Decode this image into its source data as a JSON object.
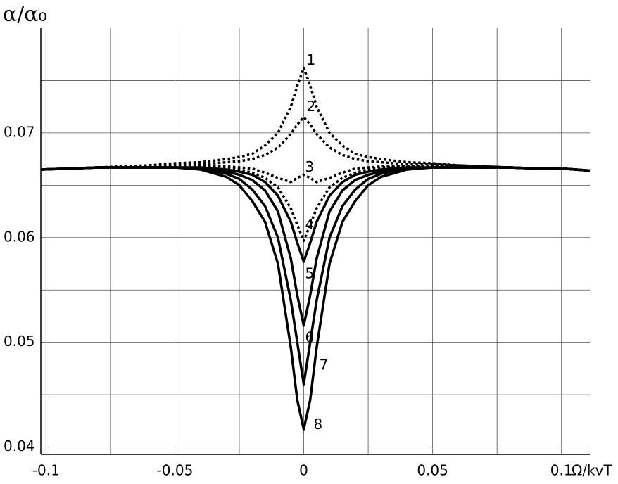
{
  "chart_data": {
    "type": "line",
    "y_label": "α/α₀",
    "x_label": "Ω/kvT",
    "x": [
      -0.102,
      -0.09,
      -0.08,
      -0.07,
      -0.06,
      -0.05,
      -0.04,
      -0.03,
      -0.025,
      -0.02,
      -0.015,
      -0.01,
      -0.005,
      -0.0025,
      0,
      0.0025,
      0.005,
      0.01,
      0.015,
      0.02,
      0.025,
      0.03,
      0.04,
      0.05,
      0.06,
      0.07,
      0.08,
      0.09,
      0.1,
      0.111
    ],
    "series": [
      {
        "name": "1",
        "color": "#000000",
        "dash": "dotted",
        "values": [
          0.0665,
          0.0666,
          0.0667,
          0.0668,
          0.0669,
          0.0671,
          0.0672,
          0.0675,
          0.0677,
          0.068,
          0.0688,
          0.07,
          0.0725,
          0.0745,
          0.0762,
          0.0745,
          0.0725,
          0.07,
          0.0688,
          0.068,
          0.0677,
          0.0675,
          0.0672,
          0.0671,
          0.0669,
          0.0668,
          0.0667,
          0.0666,
          0.0666,
          0.0664
        ]
      },
      {
        "name": "2",
        "color": "#000000",
        "dash": "dotted",
        "values": [
          0.0665,
          0.0666,
          0.0667,
          0.0668,
          0.0669,
          0.067,
          0.067,
          0.0672,
          0.0673,
          0.0675,
          0.0679,
          0.0686,
          0.0699,
          0.0708,
          0.0715,
          0.0708,
          0.0699,
          0.0686,
          0.0679,
          0.0675,
          0.0673,
          0.0672,
          0.067,
          0.067,
          0.0669,
          0.0668,
          0.0667,
          0.0666,
          0.0666,
          0.0664
        ]
      },
      {
        "name": "3",
        "color": "#000000",
        "dash": "dotted",
        "values": [
          0.0665,
          0.0666,
          0.0667,
          0.0667,
          0.0668,
          0.0668,
          0.0668,
          0.0668,
          0.0667,
          0.0666,
          0.0662,
          0.0657,
          0.0653,
          0.0657,
          0.066,
          0.0657,
          0.0653,
          0.0657,
          0.0662,
          0.0666,
          0.0667,
          0.0668,
          0.0668,
          0.0668,
          0.0668,
          0.0667,
          0.0667,
          0.0666,
          0.0666,
          0.0664
        ]
      },
      {
        "name": "4",
        "color": "#000000",
        "dash": "dotted",
        "values": [
          0.0665,
          0.0666,
          0.0667,
          0.0667,
          0.0668,
          0.0668,
          0.0668,
          0.0667,
          0.0665,
          0.0662,
          0.0657,
          0.0648,
          0.0628,
          0.0612,
          0.0597,
          0.0612,
          0.0628,
          0.0648,
          0.0657,
          0.0662,
          0.0665,
          0.0667,
          0.0668,
          0.0668,
          0.0668,
          0.0667,
          0.0667,
          0.0666,
          0.0666,
          0.0664
        ]
      },
      {
        "name": "5",
        "color": "#000000",
        "dash": "solid",
        "values": [
          0.0665,
          0.0666,
          0.0667,
          0.0667,
          0.0667,
          0.0667,
          0.0667,
          0.0665,
          0.0663,
          0.066,
          0.0653,
          0.064,
          0.0615,
          0.0595,
          0.0577,
          0.0595,
          0.0615,
          0.064,
          0.0653,
          0.066,
          0.0663,
          0.0665,
          0.0667,
          0.0667,
          0.0667,
          0.0667,
          0.0667,
          0.0666,
          0.0666,
          0.0664
        ]
      },
      {
        "name": "6",
        "color": "#000000",
        "dash": "solid",
        "values": [
          0.0665,
          0.0666,
          0.0667,
          0.0667,
          0.0667,
          0.0667,
          0.0666,
          0.0663,
          0.066,
          0.0655,
          0.0645,
          0.0625,
          0.058,
          0.0545,
          0.0516,
          0.0545,
          0.058,
          0.0625,
          0.0645,
          0.0655,
          0.066,
          0.0663,
          0.0666,
          0.0667,
          0.0667,
          0.0667,
          0.0667,
          0.0666,
          0.0666,
          0.0664
        ]
      },
      {
        "name": "7",
        "color": "#000000",
        "dash": "solid",
        "values": [
          0.0665,
          0.0666,
          0.0667,
          0.0667,
          0.0667,
          0.0667,
          0.0666,
          0.0661,
          0.0656,
          0.0646,
          0.063,
          0.06,
          0.054,
          0.05,
          0.046,
          0.05,
          0.054,
          0.06,
          0.063,
          0.0646,
          0.0656,
          0.0661,
          0.0666,
          0.0667,
          0.0667,
          0.0667,
          0.0667,
          0.0666,
          0.0666,
          0.0664
        ]
      },
      {
        "name": "8",
        "color": "#000000",
        "dash": "solid",
        "values": [
          0.0665,
          0.0666,
          0.0667,
          0.0667,
          0.0667,
          0.0667,
          0.0665,
          0.0658,
          0.065,
          0.0635,
          0.0615,
          0.0575,
          0.0495,
          0.0445,
          0.0417,
          0.0445,
          0.0495,
          0.0575,
          0.0615,
          0.0635,
          0.065,
          0.0658,
          0.0665,
          0.0667,
          0.0667,
          0.0667,
          0.0667,
          0.0666,
          0.0666,
          0.0664
        ]
      }
    ],
    "xlim": [
      -0.102,
      0.111
    ],
    "ylim": [
      0.0393,
      0.08
    ],
    "xticks": [
      -0.1,
      -0.05,
      0,
      0.05,
      0.1
    ],
    "yticks": [
      0.04,
      0.05,
      0.06,
      0.07
    ],
    "x_minor_grid": [
      -0.075,
      -0.025,
      0.025,
      0.075
    ],
    "y_minor_grid": [
      0.045,
      0.055,
      0.065,
      0.075
    ],
    "grid": true
  }
}
